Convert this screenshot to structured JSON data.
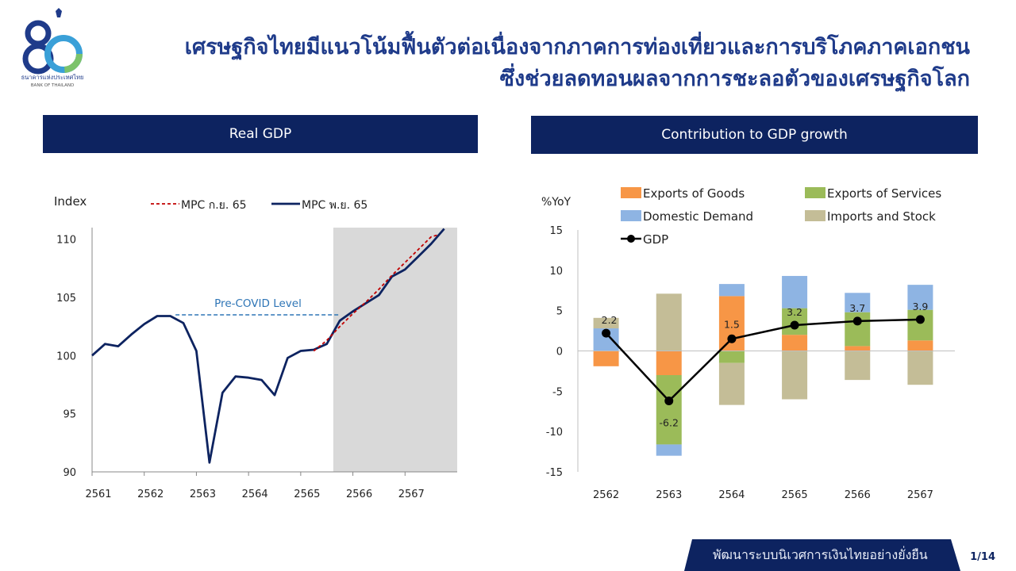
{
  "header": {
    "logo_caption_th": "ธนาคารแห่งประเทศไทย",
    "logo_caption_en": "BANK OF THAILAND",
    "title_line1": "เศรษฐกิจไทยมีแนวโน้มฟื้นตัวต่อเนื่องจากภาคการท่องเที่ยวและการบริโภคภาคเอกชน",
    "title_line2": "ซึ่งช่วยลดทอนผลจากการชะลอตัวของเศรษฐกิจโลก"
  },
  "panels": {
    "left_title": "Real GDP",
    "right_title": "Contribution to GDP growth"
  },
  "footer": {
    "text": "พัฒนาระบบนิเวศการเงินไทยอย่างยั่งยืน",
    "page": "1/14"
  },
  "colors": {
    "navy": "#0d2360",
    "title_blue": "#1f3b8a",
    "exports_goods": "#f79646",
    "exports_services": "#9bbb59",
    "domestic_demand": "#8eb4e3",
    "imports_stock": "#c4bd97",
    "forecast_shade": "#d9d9d9",
    "dashed_red": "#c00000",
    "precovid": "#2e75b6"
  },
  "chart_data": [
    {
      "type": "line",
      "ylabel": "Index",
      "ylim": [
        90,
        111
      ],
      "yticks": [
        90,
        95,
        100,
        105,
        110
      ],
      "xlim": [
        2561,
        2568
      ],
      "xticks": [
        "2561",
        "2562",
        "2563",
        "2564",
        "2565",
        "2566",
        "2567"
      ],
      "forecast_region": [
        2565.625,
        2568
      ],
      "annotation": {
        "text": "Pre-COVID Level",
        "value": 103.5,
        "from": 2562.6,
        "to": 2565.75
      },
      "legend": "top",
      "series": [
        {
          "name": "MPC ก.ย. 65",
          "style": "dashed",
          "color": "#c00000",
          "x": [
            2565.25,
            2565.5,
            2565.75,
            2566.0,
            2566.25,
            2566.5,
            2566.75,
            2567.0,
            2567.25,
            2567.5,
            2567.65
          ],
          "values": [
            100.4,
            101.3,
            102.5,
            103.6,
            104.6,
            105.7,
            106.9,
            108.0,
            109.1,
            110.2,
            110.4
          ]
        },
        {
          "name": "MPC พ.ย. 65",
          "style": "solid",
          "color": "#0d2360",
          "x": [
            2561.0,
            2561.25,
            2561.5,
            2561.75,
            2562.0,
            2562.25,
            2562.5,
            2562.75,
            2563.0,
            2563.25,
            2563.5,
            2563.75,
            2564.0,
            2564.25,
            2564.5,
            2564.75,
            2565.0,
            2565.25,
            2565.5,
            2565.75,
            2566.0,
            2566.25,
            2566.5,
            2566.75,
            2567.0,
            2567.25,
            2567.5,
            2567.75
          ],
          "values": [
            100.0,
            101.0,
            100.8,
            101.8,
            102.7,
            103.4,
            103.4,
            102.8,
            100.4,
            90.8,
            96.8,
            98.2,
            98.1,
            97.9,
            96.6,
            99.8,
            100.4,
            100.5,
            101.0,
            103.0,
            103.8,
            104.5,
            105.2,
            106.8,
            107.4,
            108.5,
            109.6,
            110.9
          ]
        }
      ]
    },
    {
      "type": "bar",
      "stacked": true,
      "ylabel": "%YoY",
      "ylim": [
        -15,
        15
      ],
      "yticks": [
        15,
        10,
        5,
        0,
        -5,
        -10,
        -15
      ],
      "categories": [
        "2562",
        "2563",
        "2564",
        "2565",
        "2566",
        "2567"
      ],
      "legend": "top",
      "series": [
        {
          "name": "Exports of Goods",
          "color": "#f79646",
          "values": [
            -1.9,
            -3.0,
            6.8,
            2.0,
            0.6,
            1.3
          ]
        },
        {
          "name": "Exports of Services",
          "color": "#9bbb59",
          "values": [
            0.0,
            -8.6,
            -1.5,
            3.3,
            4.2,
            3.8
          ]
        },
        {
          "name": "Domestic Demand",
          "color": "#8eb4e3",
          "values": [
            2.8,
            -1.4,
            1.5,
            4.0,
            2.4,
            3.1
          ]
        },
        {
          "name": "Imports and Stock",
          "color": "#c4bd97",
          "values": [
            1.3,
            7.1,
            -5.2,
            -6.0,
            -3.6,
            -4.2
          ]
        },
        {
          "name": "GDP",
          "type": "line",
          "color": "#000000",
          "values": [
            2.2,
            -6.2,
            1.5,
            3.2,
            3.7,
            3.9
          ],
          "labels": [
            "2.2",
            "-6.2",
            "1.5",
            "3.2",
            "3.7",
            "3.9"
          ]
        }
      ]
    }
  ]
}
